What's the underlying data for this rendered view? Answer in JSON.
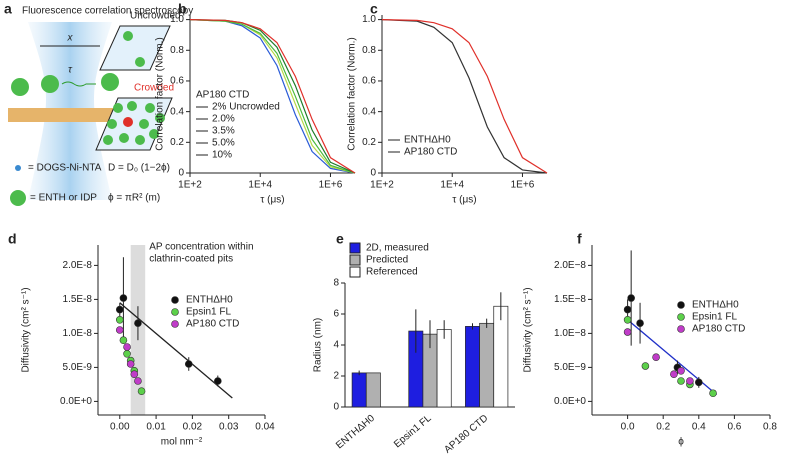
{
  "diagram": {
    "panel": "a",
    "title": "Fluorescence correlation spectroscopy",
    "distance": "x",
    "lag": "τ",
    "uncrowded": "Uncrowded",
    "crowded": "Crowded",
    "lipid_key": "= DOGS-Ni-NTA",
    "protein_key": "= ENTH or IDP",
    "equation_1": "D = D₀ (1−2ϕ)",
    "equation_2": "ϕ = πR² (m)"
  },
  "chart_data": [
    {
      "panel": "b",
      "type": "line",
      "xscale": "log",
      "xlabel": "τ (μs)",
      "ylabel": "Correlation factor (Norm.)",
      "x": [
        100,
        1000,
        3000,
        10000,
        30000,
        100000,
        300000,
        1000000,
        5000000
      ],
      "xlim": [
        100,
        5000000
      ],
      "xticks": [
        {
          "value": 100,
          "label": "1E+2"
        },
        {
          "value": 10000,
          "label": "1E+4"
        },
        {
          "value": 1000000,
          "label": "1E+6"
        }
      ],
      "ylim": [
        0,
        1.03
      ],
      "yticks": [
        0,
        0.2,
        0.4,
        0.6,
        0.8,
        {
          "value": 1,
          "label": "1.0"
        }
      ],
      "legend_title": "AP180 CTD",
      "series": [
        {
          "name": "2% Uncrowded",
          "color": "#2a5bd7",
          "values": [
            1.0,
            0.99,
            0.96,
            0.88,
            0.7,
            0.38,
            0.14,
            0.03,
            0.0
          ]
        },
        {
          "name": "2.0%",
          "color": "#b8d84a",
          "values": [
            1.0,
            0.99,
            0.97,
            0.9,
            0.75,
            0.45,
            0.18,
            0.04,
            0.0
          ]
        },
        {
          "name": "3.5%",
          "color": "#4cbb3c",
          "values": [
            1.0,
            0.99,
            0.97,
            0.91,
            0.78,
            0.5,
            0.22,
            0.05,
            0.0
          ]
        },
        {
          "name": "5.0%",
          "color": "#1f7a2a",
          "values": [
            1.0,
            0.995,
            0.98,
            0.93,
            0.82,
            0.57,
            0.28,
            0.07,
            0.0
          ]
        },
        {
          "name": "10%",
          "color": "#e0302a",
          "values": [
            1.0,
            0.995,
            0.98,
            0.94,
            0.85,
            0.63,
            0.35,
            0.1,
            0.0
          ]
        }
      ]
    },
    {
      "panel": "c",
      "type": "line",
      "xscale": "log",
      "xlabel": "τ (μs)",
      "ylabel": "Correlation factor (Norm.)",
      "x": [
        100,
        1000,
        3000,
        10000,
        30000,
        100000,
        300000,
        1000000,
        5000000
      ],
      "xlim": [
        100,
        5000000
      ],
      "xticks": [
        {
          "value": 100,
          "label": "1E+2"
        },
        {
          "value": 10000,
          "label": "1E+4"
        },
        {
          "value": 1000000,
          "label": "1E+6"
        }
      ],
      "ylim": [
        0,
        1.03
      ],
      "yticks": [
        0,
        0.2,
        0.4,
        0.6,
        0.8,
        {
          "value": 1,
          "label": "1.0"
        }
      ],
      "series": [
        {
          "name": "ENTHΔH0",
          "color": "#333333",
          "values": [
            1.0,
            0.99,
            0.95,
            0.85,
            0.62,
            0.3,
            0.1,
            0.02,
            0.0
          ]
        },
        {
          "name": "AP180 CTD",
          "color": "#e0302a",
          "values": [
            1.0,
            0.995,
            0.98,
            0.94,
            0.85,
            0.63,
            0.35,
            0.1,
            0.0
          ]
        }
      ]
    },
    {
      "panel": "d",
      "type": "scatter",
      "xlabel": "mol nm⁻²",
      "ylabel": "Diffusivity (cm² s⁻¹)",
      "xlim": [
        -0.006,
        0.04
      ],
      "xticks": [
        {
          "value": 0,
          "label": "0.00"
        },
        {
          "value": 0.01,
          "label": "0.01"
        },
        {
          "value": 0.02,
          "label": "0.02"
        },
        {
          "value": 0.03,
          "label": "0.03"
        },
        {
          "value": 0.04,
          "label": "0.04"
        }
      ],
      "ylim": [
        -2e-09,
        2.3e-08
      ],
      "yticks": [
        {
          "value": 0,
          "label": "0.0E+0"
        },
        {
          "value": 5e-09,
          "label": "5.0E-9"
        },
        {
          "value": 1e-08,
          "label": "1.0E-8"
        },
        {
          "value": 1.5e-08,
          "label": "1.5E-8"
        },
        {
          "value": 2e-08,
          "label": "2.0E-8"
        }
      ],
      "shade": [
        0.003,
        0.007
      ],
      "annotations": [
        "AP concentration within",
        "clathrin-coated pits"
      ],
      "fit": {
        "color": "#222222",
        "x": [
          0,
          0.031
        ],
        "y": [
          1.45e-08,
          5e-10
        ]
      },
      "series": [
        {
          "name": "ENTHΔH0",
          "color": "#111111",
          "x": [
            0,
            0.001,
            0.005,
            0.019,
            0.027
          ],
          "values": [
            1.35e-08,
            1.52e-08,
            1.15e-08,
            5.5e-09,
            3e-09
          ],
          "errors": [
            1e-09,
            6e-09,
            2.5e-09,
            1e-09,
            8e-10
          ]
        },
        {
          "name": "Epsin1 FL",
          "color": "#5cd04a",
          "x": [
            0,
            0.001,
            0.002,
            0.003,
            0.004,
            0.006
          ],
          "values": [
            1.2e-08,
            9e-09,
            7e-09,
            6e-09,
            4.5e-09,
            1.5e-09
          ]
        },
        {
          "name": "AP180 CTD",
          "color": "#c03cc8",
          "x": [
            0,
            0.002,
            0.003,
            0.004,
            0.005
          ],
          "values": [
            1.05e-08,
            8e-09,
            5.5e-09,
            4e-09,
            3e-09
          ]
        }
      ]
    },
    {
      "panel": "e",
      "type": "bar",
      "ylabel": "Radius (nm)",
      "categories": [
        "ENTHΔH0",
        "Epsin1 FL",
        "AP180 CTD"
      ],
      "ylim": [
        0,
        8
      ],
      "yticks": [
        0,
        2,
        4,
        6,
        8
      ],
      "series": [
        {
          "name": "2D, measured",
          "color": "#1e1ee0",
          "values": [
            2.2,
            4.9,
            5.2
          ],
          "errors": [
            0.15,
            1.4,
            0.2
          ]
        },
        {
          "name": "Predicted",
          "color": "#b0b0b0",
          "values": [
            2.2,
            4.7,
            5.4
          ],
          "errors": [
            0,
            0.9,
            0.3
          ]
        },
        {
          "name": "Referenced",
          "color": "#ffffff",
          "values": [
            null,
            5.0,
            6.5
          ],
          "errors": [
            null,
            0.6,
            0.9
          ]
        }
      ]
    },
    {
      "panel": "f",
      "type": "scatter",
      "xlabel": "ϕ",
      "ylabel": "Diffusivity (cm² s⁻¹)",
      "xlim": [
        -0.2,
        0.8
      ],
      "xticks": [
        {
          "value": 0,
          "label": "0.0"
        },
        0.2,
        0.4,
        0.6,
        {
          "value": 0.8,
          "label": "0.8"
        }
      ],
      "ylim": [
        -2e-09,
        2.3e-08
      ],
      "yticks": [
        {
          "value": 0,
          "label": "0.0E+0"
        },
        {
          "value": 5e-09,
          "label": "5.0E−9"
        },
        {
          "value": 1e-08,
          "label": "1.0E−8"
        },
        {
          "value": 1.5e-08,
          "label": "1.5E−8"
        },
        {
          "value": 2e-08,
          "label": "2.0E−8"
        }
      ],
      "fit": {
        "color": "#2030c8",
        "x": [
          0,
          0.5
        ],
        "y": [
          1.2e-08,
          1e-09
        ]
      },
      "series": [
        {
          "name": "ENTHΔH0",
          "color": "#111111",
          "x": [
            0,
            0.02,
            0.07,
            0.28,
            0.4
          ],
          "values": [
            1.35e-08,
            1.52e-08,
            1.15e-08,
            5e-09,
            2.8e-09
          ],
          "errors": [
            1.5e-09,
            7e-09,
            3e-09,
            1e-09,
            8e-10
          ]
        },
        {
          "name": "Epsin1 FL",
          "color": "#5cd04a",
          "x": [
            0,
            0.1,
            0.3,
            0.35,
            0.48
          ],
          "values": [
            1.2e-08,
            5.2e-09,
            3e-09,
            2.5e-09,
            1.2e-09
          ]
        },
        {
          "name": "AP180 CTD",
          "color": "#c03cc8",
          "x": [
            0,
            0.16,
            0.26,
            0.3,
            0.35
          ],
          "values": [
            1.02e-08,
            6.5e-09,
            4e-09,
            4.5e-09,
            3e-09
          ]
        }
      ]
    }
  ]
}
